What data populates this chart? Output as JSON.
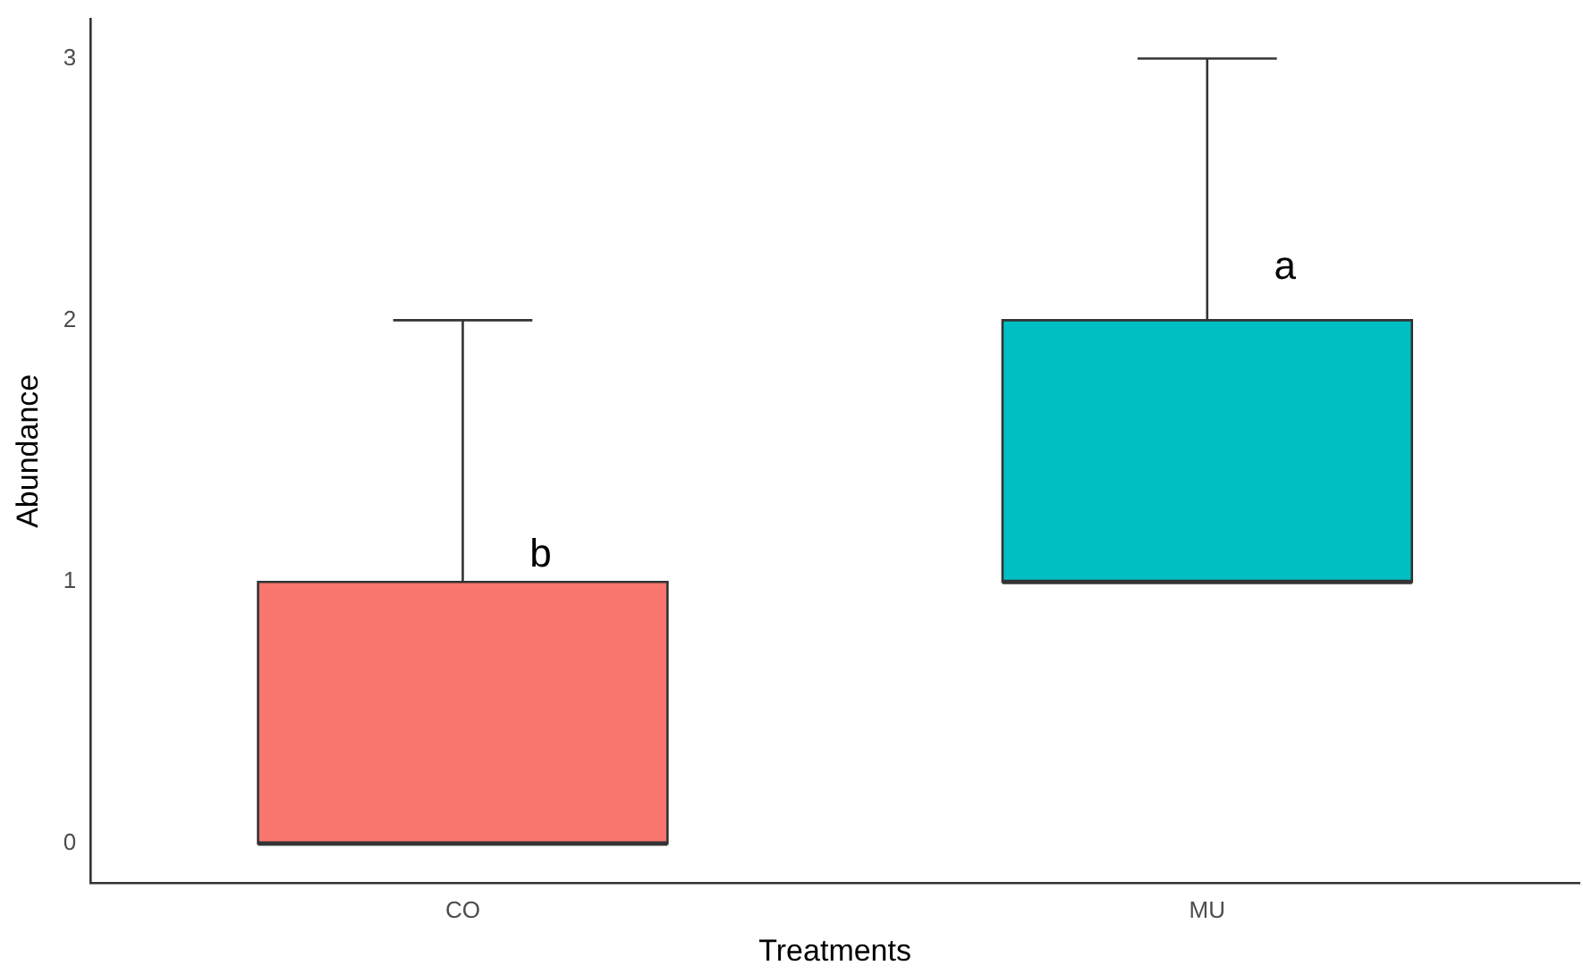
{
  "chart_data": {
    "type": "box",
    "xlabel": "Treatments",
    "ylabel": "Abundance",
    "categories": [
      "CO",
      "MU"
    ],
    "colors": [
      "#f8766d",
      "#00bfc4"
    ],
    "boxes": [
      {
        "low": 0,
        "q1": 0,
        "median": 0,
        "q3": 1,
        "high": 2
      },
      {
        "low": 1,
        "q1": 1,
        "median": 1,
        "q3": 2,
        "high": 3
      }
    ],
    "ylim": [
      -0.15,
      3.15
    ],
    "yticks": [
      0,
      1,
      2,
      3
    ],
    "grid": false,
    "legend": false,
    "annotations": [
      {
        "text": "b",
        "x": "CO",
        "y": 1.1
      },
      {
        "text": "a",
        "x": "MU",
        "y": 2.2
      }
    ]
  }
}
